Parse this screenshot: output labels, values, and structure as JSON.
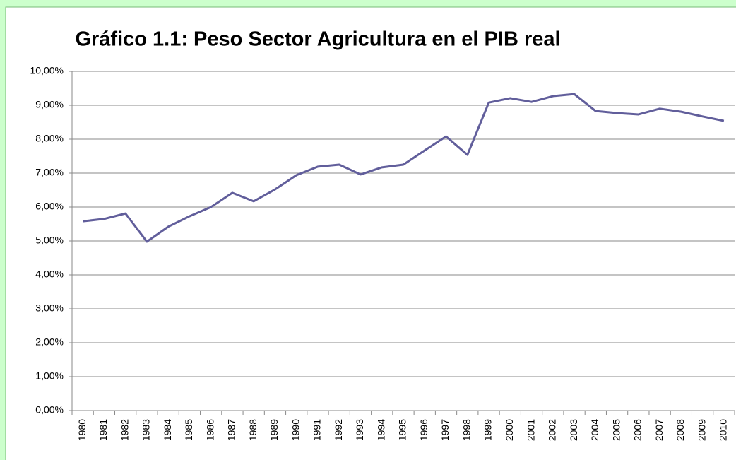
{
  "chart_data": {
    "type": "line",
    "title": "Gráfico 1.1: Peso Sector Agricultura en el PIB real",
    "categories": [
      "1980",
      "1981",
      "1982",
      "1983",
      "1984",
      "1985",
      "1986",
      "1987",
      "1988",
      "1989",
      "1990",
      "1991",
      "1992",
      "1993",
      "1994",
      "1995",
      "1996",
      "1997",
      "1998",
      "1999",
      "2000",
      "2001",
      "2002",
      "2003",
      "2004",
      "2005",
      "2006",
      "2007",
      "2008",
      "2009",
      "2010"
    ],
    "values": [
      5.58,
      5.65,
      5.81,
      4.98,
      5.42,
      5.73,
      6.0,
      6.42,
      6.17,
      6.52,
      6.94,
      7.19,
      7.25,
      6.96,
      7.17,
      7.25,
      7.67,
      8.08,
      7.54,
      9.08,
      9.21,
      9.1,
      9.27,
      9.33,
      8.83,
      8.77,
      8.73,
      8.9,
      8.81,
      8.67,
      8.54
    ],
    "color": "#615e9b",
    "ylim": [
      0,
      10
    ],
    "yticks": [
      {
        "value": 0,
        "label": "0,00%"
      },
      {
        "value": 1,
        "label": "1,00%"
      },
      {
        "value": 2,
        "label": "2,00%"
      },
      {
        "value": 3,
        "label": "3,00%"
      },
      {
        "value": 4,
        "label": "4,00%"
      },
      {
        "value": 5,
        "label": "5,00%"
      },
      {
        "value": 6,
        "label": "6,00%"
      },
      {
        "value": 7,
        "label": "7,00%"
      },
      {
        "value": 8,
        "label": "8,00%"
      },
      {
        "value": 9,
        "label": "9,00%"
      },
      {
        "value": 10,
        "label": "10,00%"
      }
    ],
    "grid": true
  }
}
